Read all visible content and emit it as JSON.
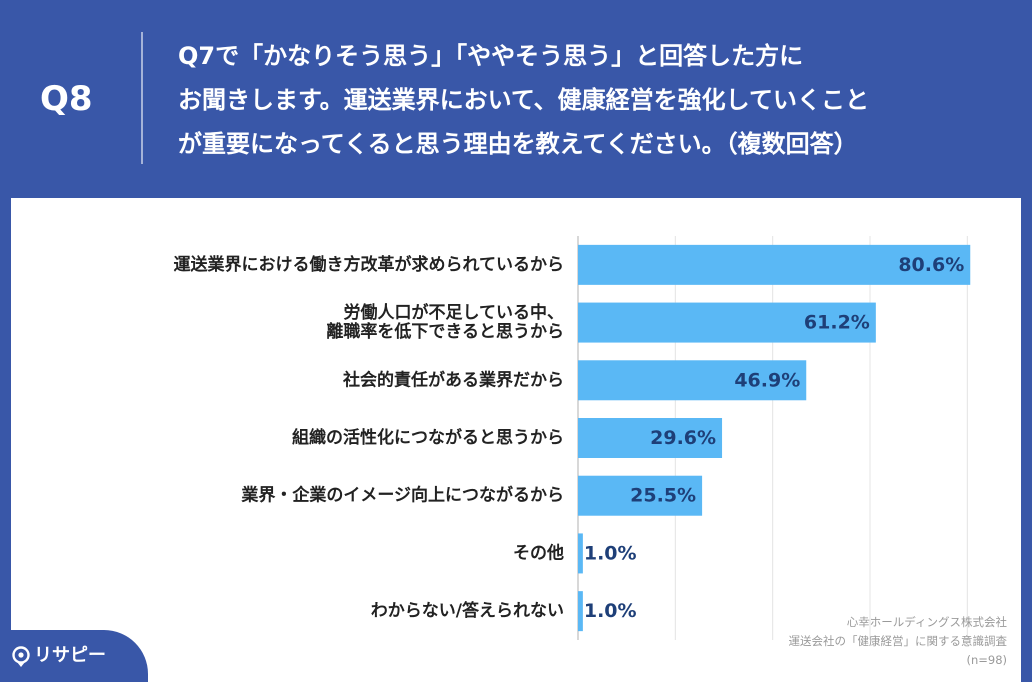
{
  "header": {
    "question_number": "Q8",
    "question_lines": [
      "Q7で「かなりそう思う」「ややそう思う」と回答した方に",
      "お聞きします。運送業界において、健康経営を強化していくこと",
      "が重要になってくると思う理由を教えてください。（複数回答）"
    ]
  },
  "chart_data": {
    "type": "bar",
    "orientation": "horizontal",
    "categories": [
      [
        "運送業界における働き方改革が求められているから"
      ],
      [
        "労働人口が不足している中、",
        "離職率を低下できると思うから"
      ],
      [
        "社会的責任がある業界だから"
      ],
      [
        "組織の活性化につながると思うから"
      ],
      [
        "業界・企業のイメージ向上につながるから"
      ],
      [
        "その他"
      ],
      [
        "わからない/答えられない"
      ]
    ],
    "values": [
      80.6,
      61.2,
      46.9,
      29.6,
      25.5,
      1.0,
      1.0
    ],
    "value_labels": [
      "80.6%",
      "61.2%",
      "46.9%",
      "29.6%",
      "25.5%",
      "1.0%",
      "1.0%"
    ],
    "xlim": [
      0,
      90
    ],
    "grid": true,
    "bar_color": "#5ab8f5",
    "label_color": "#1e3f78"
  },
  "source": {
    "line1": "心幸ホールディングス株式会社",
    "line2": "運送会社の「健康経営」に関する意識調査",
    "line3": "(n=98)"
  },
  "logo": {
    "text": "リサピー"
  },
  "colors": {
    "background": "#3957a8",
    "panel": "#ffffff"
  }
}
